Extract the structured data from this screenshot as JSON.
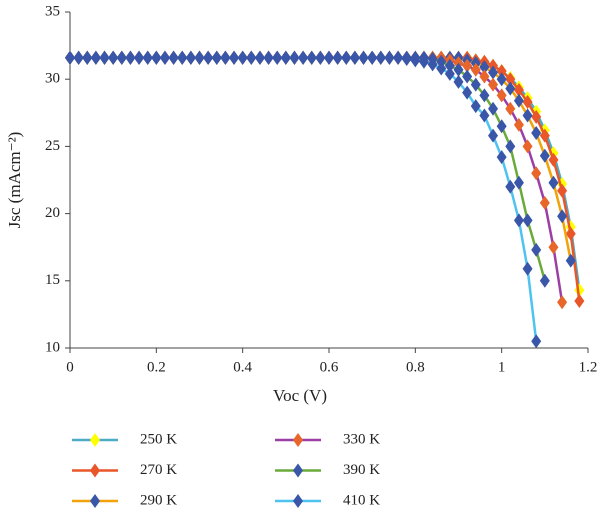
{
  "chart_data": {
    "type": "line",
    "x_label": "Voc (V)",
    "y_label": "Jsc (mAcm⁻²)",
    "xlim": [
      0,
      1.2
    ],
    "xticks": [
      0,
      0.2,
      0.4,
      0.6,
      0.8,
      1,
      1.2
    ],
    "ylim": [
      10,
      35
    ],
    "yticks": [
      10,
      15,
      20,
      25,
      30,
      35
    ],
    "grid": false,
    "legend": "bottom",
    "x": [
      0,
      0.02,
      0.04,
      0.06,
      0.08,
      0.1,
      0.12,
      0.14,
      0.16,
      0.18,
      0.2,
      0.22,
      0.24,
      0.26,
      0.28,
      0.3,
      0.32,
      0.34,
      0.36,
      0.38,
      0.4,
      0.42,
      0.44,
      0.46,
      0.48,
      0.5,
      0.52,
      0.54,
      0.56,
      0.58,
      0.6,
      0.62,
      0.64,
      0.66,
      0.68,
      0.7,
      0.72,
      0.74,
      0.76,
      0.78,
      0.8,
      0.82,
      0.84,
      0.86,
      0.88,
      0.9,
      0.92,
      0.94,
      0.96,
      0.98,
      1,
      1.02,
      1.04,
      1.06,
      1.08,
      1.1,
      1.12,
      1.14,
      1.16,
      1.18
    ],
    "series": [
      {
        "name": "250 K",
        "color": "#4bacc6",
        "marker_color": "#ffff00",
        "values": [
          31.6,
          31.6,
          31.6,
          31.6,
          31.6,
          31.6,
          31.6,
          31.6,
          31.6,
          31.6,
          31.6,
          31.6,
          31.6,
          31.6,
          31.6,
          31.6,
          31.6,
          31.6,
          31.6,
          31.6,
          31.6,
          31.6,
          31.6,
          31.6,
          31.6,
          31.6,
          31.6,
          31.6,
          31.6,
          31.6,
          31.6,
          31.6,
          31.6,
          31.6,
          31.6,
          31.6,
          31.6,
          31.6,
          31.6,
          31.6,
          31.6,
          31.6,
          31.6,
          31.6,
          31.6,
          31.6,
          31.6,
          31.4,
          31.3,
          31.0,
          30.6,
          30.1,
          29.4,
          28.6,
          27.6,
          26.2,
          24.5,
          22.2,
          19.0,
          14.3
        ]
      },
      {
        "name": "270 K",
        "color": "#e8562a",
        "marker_color": "#e8562a",
        "values": [
          31.6,
          31.6,
          31.6,
          31.6,
          31.6,
          31.6,
          31.6,
          31.6,
          31.6,
          31.6,
          31.6,
          31.6,
          31.6,
          31.6,
          31.6,
          31.6,
          31.6,
          31.6,
          31.6,
          31.6,
          31.6,
          31.6,
          31.6,
          31.6,
          31.6,
          31.6,
          31.6,
          31.6,
          31.6,
          31.6,
          31.6,
          31.6,
          31.6,
          31.6,
          31.6,
          31.6,
          31.6,
          31.6,
          31.6,
          31.6,
          31.6,
          31.6,
          31.6,
          31.6,
          31.6,
          31.6,
          31.6,
          31.4,
          31.3,
          31.0,
          30.6,
          30.0,
          29.2,
          28.3,
          27.2,
          25.8,
          24.0,
          21.7,
          18.5,
          13.5
        ]
      },
      {
        "name": "290 K",
        "color": "#f0a30a",
        "marker_color": "#3a56a8",
        "values": [
          31.6,
          31.6,
          31.6,
          31.6,
          31.6,
          31.6,
          31.6,
          31.6,
          31.6,
          31.6,
          31.6,
          31.6,
          31.6,
          31.6,
          31.6,
          31.6,
          31.6,
          31.6,
          31.6,
          31.6,
          31.6,
          31.6,
          31.6,
          31.6,
          31.6,
          31.6,
          31.6,
          31.6,
          31.6,
          31.6,
          31.6,
          31.6,
          31.6,
          31.6,
          31.6,
          31.6,
          31.6,
          31.6,
          31.6,
          31.6,
          31.6,
          31.6,
          31.6,
          31.6,
          31.6,
          31.6,
          31.4,
          31.2,
          30.9,
          30.5,
          30.0,
          29.3,
          28.4,
          27.3,
          26.0,
          24.3,
          22.3,
          19.8,
          16.5,
          null
        ]
      },
      {
        "name": "330 K",
        "color": "#9b3ea6",
        "marker_color": "#e8662a",
        "values": [
          31.6,
          31.6,
          31.6,
          31.6,
          31.6,
          31.6,
          31.6,
          31.6,
          31.6,
          31.6,
          31.6,
          31.6,
          31.6,
          31.6,
          31.6,
          31.6,
          31.6,
          31.6,
          31.6,
          31.6,
          31.6,
          31.6,
          31.6,
          31.6,
          31.6,
          31.6,
          31.6,
          31.6,
          31.6,
          31.6,
          31.6,
          31.6,
          31.6,
          31.6,
          31.6,
          31.6,
          31.6,
          31.6,
          31.6,
          31.6,
          31.6,
          31.6,
          31.6,
          31.6,
          31.4,
          31.2,
          31.0,
          30.7,
          30.2,
          29.6,
          28.8,
          27.8,
          26.6,
          25.0,
          23.0,
          20.8,
          17.5,
          13.4,
          null,
          null
        ]
      },
      {
        "name": "390 K",
        "color": "#6aaa3a",
        "marker_color": "#3a56a8",
        "values": [
          31.6,
          31.6,
          31.6,
          31.6,
          31.6,
          31.6,
          31.6,
          31.6,
          31.6,
          31.6,
          31.6,
          31.6,
          31.6,
          31.6,
          31.6,
          31.6,
          31.6,
          31.6,
          31.6,
          31.6,
          31.6,
          31.6,
          31.6,
          31.6,
          31.6,
          31.6,
          31.6,
          31.6,
          31.6,
          31.6,
          31.6,
          31.6,
          31.6,
          31.6,
          31.6,
          31.6,
          31.6,
          31.6,
          31.6,
          31.6,
          31.6,
          31.6,
          31.5,
          31.3,
          31.0,
          30.7,
          30.2,
          29.6,
          28.8,
          27.8,
          26.5,
          25.0,
          22.3,
          19.5,
          17.3,
          15.0,
          null,
          null,
          null,
          null
        ]
      },
      {
        "name": "410 K",
        "color": "#4fc3f0",
        "marker_color": "#3a56a8",
        "values": [
          31.6,
          31.6,
          31.6,
          31.6,
          31.6,
          31.6,
          31.6,
          31.6,
          31.6,
          31.6,
          31.6,
          31.6,
          31.6,
          31.6,
          31.6,
          31.6,
          31.6,
          31.6,
          31.6,
          31.6,
          31.6,
          31.6,
          31.6,
          31.6,
          31.6,
          31.6,
          31.6,
          31.6,
          31.6,
          31.6,
          31.6,
          31.6,
          31.6,
          31.6,
          31.6,
          31.6,
          31.6,
          31.6,
          31.6,
          31.5,
          31.4,
          31.3,
          31.1,
          30.8,
          30.4,
          29.8,
          29.0,
          28.0,
          27.3,
          25.8,
          24.2,
          22.0,
          19.5,
          15.9,
          10.5,
          null,
          null,
          null,
          null,
          null
        ]
      }
    ]
  }
}
